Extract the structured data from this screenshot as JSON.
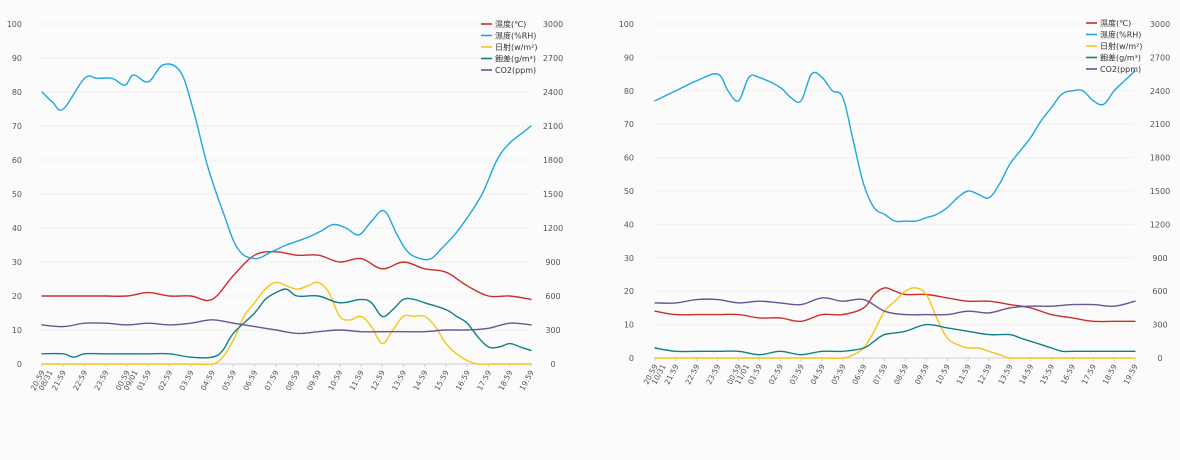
{
  "colors": {
    "temp": "#c8302c",
    "humidity": "#1ea7e1",
    "solar": "#f5c518",
    "hd": "#0f7f86",
    "co2": "#6a5494"
  },
  "chart_data": [
    {
      "type": "line",
      "title": "",
      "yleft": {
        "range": [
          0,
          100
        ],
        "ticks": [
          "0",
          "10",
          "20",
          "30",
          "40",
          "50",
          "60",
          "70",
          "80",
          "90",
          "100"
        ]
      },
      "yright": {
        "range": [
          0,
          3000
        ],
        "ticks": [
          "0",
          "300",
          "600",
          "900",
          "1200",
          "1500",
          "1800",
          "2100",
          "2400",
          "2700",
          "3000"
        ]
      },
      "x_labels": [
        "20:59\n08/31",
        "21:59",
        "22:59",
        "23:59",
        "00:59\n09/01",
        "01:59",
        "02:59",
        "03:59",
        "04:59",
        "05:59",
        "06:59",
        "07:59",
        "08:59",
        "09:59",
        "10:59",
        "11:59",
        "12:59",
        "13:59",
        "14:59",
        "15:59",
        "16:59",
        "17:59",
        "18:59",
        "19:59"
      ],
      "legend": {
        "position": "top-right",
        "items": [
          "濕度(℃)",
          "濕度(%RH)",
          "日射(w/m²)",
          "飽差(g/m³)",
          "CO2(ppm)"
        ]
      },
      "series": [
        {
          "name": "濕度(℃)",
          "key": "temp",
          "axis": "left",
          "x": [
            0,
            1,
            2,
            3,
            4,
            5,
            6,
            7,
            8,
            9,
            10,
            11,
            12,
            13,
            14,
            15,
            16,
            17,
            18,
            19,
            20,
            21,
            22,
            23
          ],
          "values": [
            20,
            20,
            20,
            20,
            20,
            21,
            20,
            20,
            19,
            26,
            32,
            33,
            32,
            32,
            30,
            31,
            28,
            30,
            28,
            27,
            23,
            20,
            20,
            19
          ]
        },
        {
          "name": "濕度(%RH)",
          "key": "humidity",
          "axis": "left",
          "x": [
            0,
            0.5,
            1,
            2,
            2.6,
            3.3,
            3.9,
            4.3,
            5,
            5.7,
            6.5,
            7.1,
            7.8,
            8.5,
            9.2,
            10,
            10.8,
            11.5,
            12.4,
            13.1,
            13.7,
            14.3,
            14.9,
            15.5,
            16.1,
            16.7,
            17.2,
            17.8,
            18.3,
            18.8,
            19.4,
            20,
            20.7,
            21.4,
            22,
            22.6,
            23
          ],
          "values": [
            80,
            77,
            75,
            84,
            84,
            84,
            82,
            85,
            83,
            88,
            86,
            75,
            58,
            45,
            34,
            31,
            33,
            35,
            37,
            39,
            41,
            40,
            38,
            42,
            45,
            38,
            33,
            31,
            31,
            34,
            38,
            43,
            50,
            60,
            65,
            68,
            70
          ]
        },
        {
          "name": "日射(w/m²)",
          "key": "solar",
          "axis": "left",
          "x": [
            0,
            1,
            2,
            3,
            4,
            5,
            6,
            7,
            8,
            8.5,
            9,
            9.5,
            10,
            10.5,
            11,
            11.5,
            12,
            12.5,
            13,
            13.5,
            14,
            14.5,
            15,
            15.5,
            16,
            16.5,
            17,
            17.5,
            18,
            18.5,
            19,
            19.5,
            20,
            20.5,
            21,
            22,
            23
          ],
          "values": [
            0,
            0,
            0,
            0,
            0,
            0,
            0,
            0,
            0,
            2,
            7,
            14,
            18,
            22,
            24,
            23,
            22,
            23,
            24,
            21,
            14,
            13,
            14,
            11,
            6,
            10,
            14,
            14,
            14,
            11,
            6,
            3,
            1,
            0,
            0,
            0,
            0
          ]
        },
        {
          "name": "飽差(g/m³)",
          "key": "hd",
          "axis": "left",
          "x": [
            0,
            1,
            1.5,
            2,
            3,
            4,
            5,
            6,
            7,
            8,
            8.5,
            9,
            10,
            10.5,
            11,
            11.5,
            12,
            13,
            14,
            15,
            15.5,
            16,
            16.5,
            17,
            17.5,
            18,
            19,
            19.5,
            20,
            20.5,
            21,
            21.5,
            22,
            22.5,
            23
          ],
          "values": [
            3,
            3,
            2,
            3,
            3,
            3,
            3,
            3,
            2,
            2,
            4,
            9,
            15,
            19,
            21,
            22,
            20,
            20,
            18,
            19,
            18,
            14,
            16,
            19,
            19,
            18,
            16,
            14,
            12,
            8,
            5,
            5,
            6,
            5,
            4
          ]
        },
        {
          "name": "CO2(ppm)",
          "key": "co2",
          "axis": "left",
          "x": [
            0,
            1,
            2,
            3,
            4,
            5,
            6,
            7,
            8,
            9,
            10,
            11,
            12,
            13,
            14,
            15,
            16,
            17,
            18,
            19,
            20,
            21,
            22,
            23
          ],
          "values": [
            11.5,
            11,
            12,
            12,
            11.5,
            12,
            11.5,
            12,
            13,
            12,
            11,
            10,
            9,
            9.5,
            10,
            9.5,
            9.5,
            9.5,
            9.5,
            10,
            10,
            10.5,
            12,
            11.5
          ]
        }
      ]
    },
    {
      "type": "line",
      "title": "",
      "yleft": {
        "range": [
          0,
          100
        ],
        "ticks": [
          "0",
          "10",
          "20",
          "30",
          "40",
          "50",
          "60",
          "70",
          "80",
          "90",
          "100"
        ]
      },
      "yright": {
        "range": [
          0,
          3000
        ],
        "ticks": [
          "0",
          "300",
          "600",
          "900",
          "1200",
          "1500",
          "1800",
          "2100",
          "2400",
          "2700",
          "3000"
        ]
      },
      "x_labels": [
        "20:59\n10/31",
        "21:59",
        "22:59",
        "23:59",
        "00:59\n11/01",
        "01:59",
        "02:59",
        "03:59",
        "04:59",
        "05:59",
        "06:59",
        "07:59",
        "08:59",
        "09:59",
        "10:59",
        "11:59",
        "12:59",
        "13:59",
        "14:59",
        "15:59",
        "16:59",
        "17:59",
        "18:59",
        "19:59"
      ],
      "legend": {
        "position": "top-right",
        "items": [
          "濕度(℃)",
          "濕度(%RH)",
          "日射(w/m²)",
          "飽差(g/m³)",
          "CO2(ppm)"
        ]
      },
      "series": [
        {
          "name": "濕度(℃)",
          "key": "temp",
          "axis": "left",
          "x": [
            0,
            1,
            2,
            3,
            4,
            5,
            6,
            7,
            8,
            9,
            10,
            10.5,
            11,
            11.5,
            12,
            13,
            14,
            15,
            16,
            17,
            18,
            19,
            20,
            21,
            22,
            23
          ],
          "values": [
            14,
            13,
            13,
            13,
            13,
            12,
            12,
            11,
            13,
            13,
            15,
            19,
            21,
            20,
            19,
            19,
            18,
            17,
            17,
            16,
            15,
            13,
            12,
            11,
            11,
            11
          ]
        },
        {
          "name": "濕度(%RH)",
          "key": "humidity",
          "axis": "left",
          "x": [
            0,
            1,
            2,
            3,
            3.5,
            4,
            4.5,
            5,
            6,
            6.5,
            7,
            7.5,
            8,
            8.5,
            9,
            9.5,
            10,
            10.5,
            11,
            11.5,
            12,
            12.5,
            13,
            13.5,
            14,
            14.5,
            15,
            15.5,
            16,
            16.5,
            17,
            17.5,
            18,
            18.5,
            19,
            19.5,
            20,
            20.5,
            21,
            21.5,
            22,
            22.5,
            23
          ],
          "values": [
            77,
            80,
            83,
            85,
            80,
            77,
            84,
            84,
            81,
            78,
            77,
            85,
            84,
            80,
            78,
            65,
            52,
            45,
            43,
            41,
            41,
            41,
            42,
            43,
            45,
            48,
            50,
            49,
            48,
            52,
            58,
            62,
            66,
            71,
            75,
            79,
            80,
            80,
            77,
            76,
            80,
            83,
            86
          ]
        },
        {
          "name": "日射(w/m²)",
          "key": "solar",
          "axis": "left",
          "x": [
            0,
            1,
            2,
            3,
            4,
            5,
            6,
            7,
            8,
            9,
            9.5,
            10,
            10.5,
            11,
            11.5,
            12,
            12.5,
            13,
            13.5,
            14,
            14.5,
            15,
            15.5,
            16,
            16.5,
            17,
            17.5,
            18,
            19,
            20,
            21,
            22,
            23
          ],
          "values": [
            0,
            0,
            0,
            0,
            0,
            0,
            0,
            0,
            0,
            0,
            1,
            3,
            8,
            14,
            17,
            20,
            21,
            19,
            12,
            6,
            4,
            3,
            3,
            2,
            1,
            0,
            0,
            0,
            0,
            0,
            0,
            0,
            0
          ]
        },
        {
          "name": "飽差(g/m³)",
          "key": "hd",
          "axis": "left",
          "x": [
            0,
            1,
            2,
            3,
            4,
            5,
            6,
            7,
            8,
            9,
            10,
            10.5,
            11,
            12,
            13,
            14,
            15,
            16,
            17,
            17.5,
            18,
            18.5,
            19,
            19.5,
            20,
            21,
            22,
            23
          ],
          "values": [
            3,
            2,
            2,
            2,
            2,
            1,
            2,
            1,
            2,
            2,
            3,
            5,
            7,
            8,
            10,
            9,
            8,
            7,
            7,
            6,
            5,
            4,
            3,
            2,
            2,
            2,
            2,
            2
          ]
        },
        {
          "name": "CO2(ppm)",
          "key": "co2",
          "axis": "left",
          "x": [
            0,
            1,
            2,
            3,
            4,
            5,
            6,
            7,
            8,
            9,
            10,
            11,
            12,
            13,
            14,
            15,
            16,
            17,
            18,
            19,
            20,
            21,
            22,
            23
          ],
          "values": [
            16.5,
            16.5,
            17.5,
            17.5,
            16.5,
            17,
            16.5,
            16,
            18,
            17,
            17.5,
            14,
            13,
            13,
            13,
            14,
            13.5,
            15,
            15.5,
            15.5,
            16,
            16,
            15.5,
            17
          ]
        }
      ]
    }
  ]
}
